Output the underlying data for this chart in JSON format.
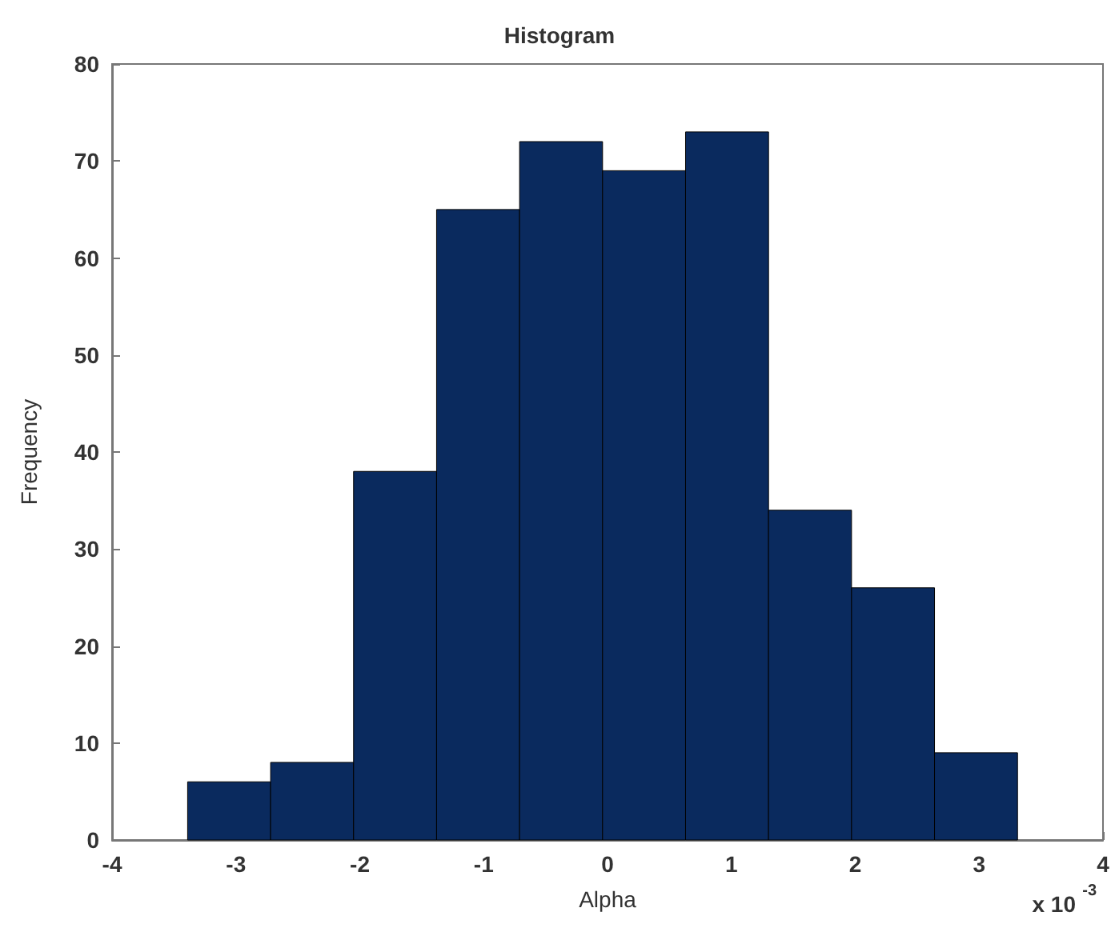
{
  "chart_data": {
    "type": "histogram",
    "title": "Histogram",
    "xlabel": "Alpha",
    "ylabel": "Frequency",
    "bins": [
      -3.39,
      -2.72,
      -2.05,
      -1.38,
      -0.71,
      -0.04,
      0.63,
      1.3,
      1.97,
      2.64,
      3.31
    ],
    "values": [
      6,
      8,
      38,
      65,
      72,
      69,
      73,
      34,
      26,
      9
    ],
    "color": "#0a2a5e",
    "xlim": [
      -4,
      4
    ],
    "xticks": [
      -4,
      -3,
      -2,
      -1,
      0,
      1,
      2,
      3,
      4
    ],
    "ylim": [
      0,
      80
    ],
    "yticks": [
      0,
      10,
      20,
      30,
      40,
      50,
      60,
      70,
      80
    ],
    "annotations": [
      "x 10$^{-3}$"
    ]
  }
}
